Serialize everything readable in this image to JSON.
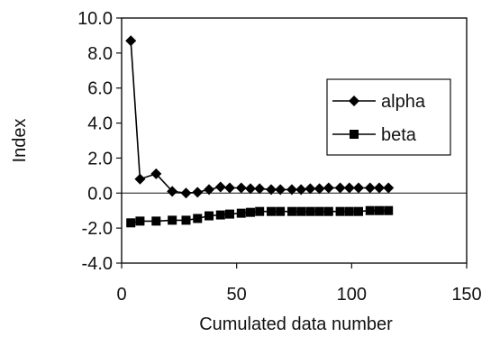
{
  "chart_data": {
    "type": "line",
    "title": "",
    "xlabel": "Cumulated data number",
    "ylabel": "Index",
    "xlim": [
      0,
      150
    ],
    "ylim": [
      -4.0,
      10.0
    ],
    "x_ticks": [
      0,
      50,
      100,
      150
    ],
    "y_ticks": [
      10.0,
      8.0,
      6.0,
      4.0,
      2.0,
      0.0,
      -2.0,
      -4.0
    ],
    "x_tick_labels": [
      "0",
      "50",
      "100",
      "150"
    ],
    "y_tick_labels": [
      "10.0",
      "8.0",
      "6.0",
      "4.0",
      "2.0",
      "0.0",
      "-2.0",
      "-4.0"
    ],
    "grid": false,
    "zero_line": true,
    "legend_position": "right",
    "series": [
      {
        "name": "alpha",
        "marker": "diamond",
        "x": [
          4,
          8,
          15,
          22,
          28,
          33,
          38,
          43,
          47,
          52,
          56,
          60,
          65,
          69,
          74,
          78,
          82,
          86,
          90,
          95,
          99,
          103,
          108,
          112,
          116
        ],
        "y": [
          8.7,
          0.8,
          1.1,
          0.1,
          0.0,
          0.05,
          0.2,
          0.35,
          0.3,
          0.3,
          0.25,
          0.25,
          0.2,
          0.2,
          0.2,
          0.2,
          0.25,
          0.25,
          0.3,
          0.3,
          0.3,
          0.3,
          0.3,
          0.3,
          0.3
        ]
      },
      {
        "name": "beta",
        "marker": "square",
        "x": [
          4,
          8,
          15,
          22,
          28,
          33,
          38,
          43,
          47,
          52,
          56,
          60,
          65,
          69,
          74,
          78,
          82,
          86,
          90,
          95,
          99,
          103,
          108,
          112,
          116
        ],
        "y": [
          -1.7,
          -1.6,
          -1.6,
          -1.55,
          -1.55,
          -1.45,
          -1.3,
          -1.25,
          -1.2,
          -1.15,
          -1.1,
          -1.05,
          -1.05,
          -1.05,
          -1.05,
          -1.05,
          -1.05,
          -1.05,
          -1.05,
          -1.05,
          -1.05,
          -1.05,
          -1.0,
          -1.0,
          -1.0
        ]
      }
    ]
  }
}
